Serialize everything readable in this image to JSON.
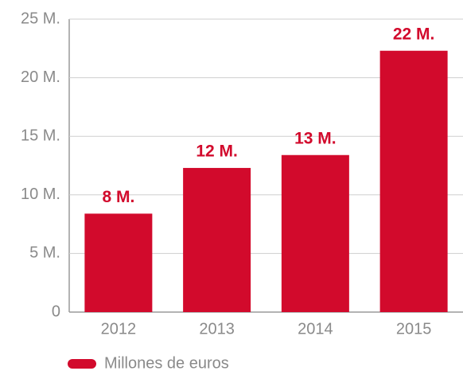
{
  "chart_data": {
    "type": "bar",
    "categories": [
      "2012",
      "2013",
      "2014",
      "2015"
    ],
    "values": [
      8.4,
      12.3,
      13.4,
      22.3
    ],
    "value_labels": [
      "8 M.",
      "12 M.",
      "13 M.",
      "22 M."
    ],
    "color": "#d20a2c",
    "ylim": [
      0,
      25
    ],
    "yticks": [
      0,
      {
        "value": 5,
        "label": "5 M."
      },
      {
        "value": 10,
        "label": "10 M."
      },
      {
        "value": 15,
        "label": "15 M."
      },
      {
        "value": 20,
        "label": "20 M."
      },
      {
        "value": 25,
        "label": "25 M."
      }
    ],
    "grid": true,
    "legend": {
      "name": "Millones de euros",
      "position": "bottom-left"
    }
  }
}
